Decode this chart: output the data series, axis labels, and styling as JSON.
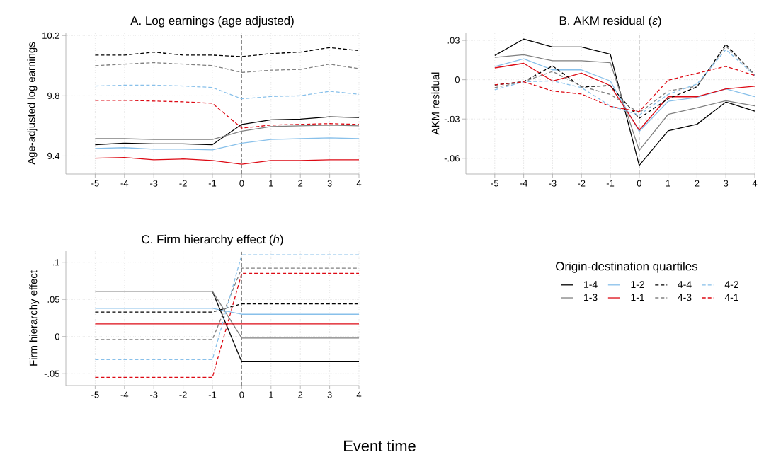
{
  "chart_data": [
    {
      "type": "line",
      "title": "A. Log earnings (age adjusted)",
      "ylabel": "Age-adjusted log earnings",
      "x": [
        -5,
        -4,
        -3,
        -2,
        -1,
        0,
        1,
        2,
        3,
        4
      ],
      "xlim": [
        -6,
        4
      ],
      "xticks": [
        -5,
        -4,
        -3,
        -2,
        -1,
        0,
        1,
        2,
        3,
        4
      ],
      "ylim": [
        9.28,
        10.22
      ],
      "yticks": [
        9.4,
        9.8,
        10.2
      ],
      "grid": true,
      "ref_lines": [
        {
          "axis": "x",
          "value": 0,
          "color": "#808080",
          "line_style": "dashed"
        }
      ],
      "series": [
        {
          "color": "#000000",
          "line_style": "solid",
          "values": [
            9.475,
            9.485,
            9.48,
            9.48,
            9.475,
            9.61,
            9.64,
            9.645,
            9.66,
            9.655
          ]
        },
        {
          "color": "#808080",
          "line_style": "solid",
          "values": [
            9.515,
            9.515,
            9.51,
            9.51,
            9.51,
            9.565,
            9.595,
            9.6,
            9.605,
            9.6
          ]
        },
        {
          "color": "#88c0ea",
          "line_style": "solid",
          "values": [
            9.45,
            9.455,
            9.445,
            9.445,
            9.44,
            9.485,
            9.51,
            9.515,
            9.52,
            9.515
          ]
        },
        {
          "color": "#dd0a14",
          "line_style": "solid",
          "values": [
            9.385,
            9.39,
            9.375,
            9.38,
            9.37,
            9.345,
            9.37,
            9.37,
            9.375,
            9.375
          ]
        },
        {
          "color": "#000000",
          "line_style": "dashed",
          "values": [
            10.07,
            10.07,
            10.09,
            10.07,
            10.07,
            10.06,
            10.08,
            10.09,
            10.12,
            10.1
          ]
        },
        {
          "color": "#808080",
          "line_style": "dashed",
          "values": [
            10.0,
            10.01,
            10.02,
            10.01,
            10.0,
            9.955,
            9.97,
            9.975,
            10.01,
            9.98
          ]
        },
        {
          "color": "#88c0ea",
          "line_style": "dashed",
          "values": [
            9.865,
            9.87,
            9.87,
            9.865,
            9.855,
            9.78,
            9.795,
            9.8,
            9.83,
            9.81
          ]
        },
        {
          "color": "#dd0a14",
          "line_style": "dashed",
          "values": [
            9.77,
            9.77,
            9.765,
            9.76,
            9.75,
            9.585,
            9.605,
            9.61,
            9.615,
            9.61
          ]
        }
      ]
    },
    {
      "type": "line",
      "title": "B. AKM residual (*ε*)",
      "ylabel": "AKM residual",
      "x": [
        -5,
        -4,
        -3,
        -2,
        -1,
        0,
        1,
        2,
        3,
        4
      ],
      "xlim": [
        -6,
        4
      ],
      "xticks": [
        -5,
        -4,
        -3,
        -2,
        -1,
        0,
        1,
        2,
        3,
        4
      ],
      "ylim": [
        -0.072,
        0.036
      ],
      "yticks": [
        {
          "value": -0.06,
          "label": "-.06"
        },
        {
          "value": -0.03,
          "label": "-.03"
        },
        0,
        {
          "value": 0.03,
          "label": ".03"
        }
      ],
      "grid": true,
      "ref_lines": [
        {
          "axis": "x",
          "value": 0,
          "color": "#808080",
          "line_style": "dashed"
        }
      ],
      "series": [
        {
          "color": "#000000",
          "line_style": "solid",
          "values": [
            0.0185,
            0.031,
            0.025,
            0.025,
            0.0195,
            -0.0655,
            -0.039,
            -0.034,
            -0.017,
            -0.024
          ]
        },
        {
          "color": "#808080",
          "line_style": "solid",
          "values": [
            0.017,
            0.019,
            0.0145,
            0.0145,
            0.013,
            -0.054,
            -0.0265,
            -0.0215,
            -0.016,
            -0.02
          ]
        },
        {
          "color": "#88c0ea",
          "line_style": "solid",
          "values": [
            0.01,
            0.016,
            0.0075,
            0.0075,
            -0.001,
            -0.0395,
            -0.0165,
            -0.0135,
            -0.007,
            -0.013
          ]
        },
        {
          "color": "#dd0a14",
          "line_style": "solid",
          "values": [
            0.009,
            0.0125,
            -0.001,
            0.005,
            -0.0045,
            -0.0385,
            -0.013,
            -0.013,
            -0.007,
            -0.005
          ]
        },
        {
          "color": "#000000",
          "line_style": "dashed",
          "values": [
            -0.004,
            -0.0015,
            0.0105,
            -0.0055,
            -0.0045,
            -0.0295,
            -0.0145,
            -0.0055,
            0.027,
            0.0035
          ]
        },
        {
          "color": "#808080",
          "line_style": "dashed",
          "values": [
            -0.006,
            -0.0015,
            0.0063,
            -0.005,
            -0.0112,
            -0.0253,
            -0.0086,
            -0.005,
            0.0256,
            0.0037
          ]
        },
        {
          "color": "#88c0ea",
          "line_style": "dashed",
          "values": [
            -0.0077,
            -0.0016,
            -0.0009,
            -0.006,
            -0.02,
            -0.027,
            -0.0112,
            -0.0033,
            0.023,
            0.0032
          ]
        },
        {
          "color": "#dd0a14",
          "line_style": "dashed",
          "values": [
            -0.0039,
            -0.0016,
            -0.0086,
            -0.0109,
            -0.0204,
            -0.0244,
            -0.0004,
            0.0049,
            0.0102,
            0.0032
          ]
        }
      ]
    },
    {
      "type": "line",
      "title": "C. Firm hierarchy effect (*h*)",
      "ylabel": "Firm hierarchy effect",
      "xlabel": "Event time",
      "x": [
        -5,
        -4,
        -3,
        -2,
        -1,
        0,
        1,
        2,
        3,
        4
      ],
      "xlim": [
        -6,
        4
      ],
      "xticks": [
        -5,
        -4,
        -3,
        -2,
        -1,
        0,
        1,
        2,
        3,
        4
      ],
      "ylim": [
        -0.066,
        0.115
      ],
      "yticks": [
        {
          "value": -0.05,
          "label": "-.05"
        },
        0,
        {
          "value": 0.05,
          "label": ".05"
        },
        {
          "value": 0.1,
          "label": ".1"
        }
      ],
      "grid": true,
      "legend": "right",
      "legend_title": "Origin-destination quartiles",
      "ref_lines": [
        {
          "axis": "x",
          "value": 0,
          "color": "#808080",
          "line_style": "dashed"
        }
      ],
      "series": [
        {
          "name": "1-4",
          "color": "#000000",
          "line_style": "solid",
          "values": [
            0.061,
            0.061,
            0.061,
            0.061,
            0.061,
            -0.034,
            -0.034,
            -0.034,
            -0.034,
            -0.034
          ]
        },
        {
          "name": "1-3",
          "color": "#808080",
          "line_style": "solid",
          "values": [
            null,
            null,
            null,
            null,
            0.061,
            -0.002,
            -0.002,
            -0.002,
            -0.002,
            -0.002
          ]
        },
        {
          "name": "1-2",
          "color": "#88c0ea",
          "line_style": "solid",
          "values": [
            0.038,
            0.038,
            0.038,
            0.038,
            0.038,
            0.03,
            0.03,
            0.03,
            0.03,
            0.03
          ]
        },
        {
          "name": "1-1",
          "color": "#dd0a14",
          "line_style": "solid",
          "values": [
            0.017,
            0.017,
            0.017,
            0.017,
            0.017,
            0.017,
            0.017,
            0.017,
            0.017,
            0.017
          ]
        },
        {
          "name": "4-4",
          "color": "#000000",
          "line_style": "dashed",
          "values": [
            0.033,
            0.033,
            0.033,
            0.033,
            0.033,
            0.044,
            0.044,
            0.044,
            0.044,
            0.044
          ]
        },
        {
          "name": "4-3",
          "color": "#808080",
          "line_style": "dashed",
          "values": [
            -0.004,
            -0.004,
            -0.004,
            -0.004,
            -0.004,
            0.092,
            0.092,
            0.092,
            0.092,
            0.092
          ]
        },
        {
          "name": "4-2",
          "color": "#88c0ea",
          "line_style": "dashed",
          "values": [
            -0.031,
            -0.031,
            -0.031,
            -0.031,
            -0.031,
            0.11,
            0.11,
            0.11,
            0.11,
            0.11
          ]
        },
        {
          "name": "4-1",
          "color": "#dd0a14",
          "line_style": "dashed",
          "values": [
            -0.055,
            -0.055,
            -0.055,
            -0.055,
            -0.055,
            0.085,
            0.085,
            0.085,
            0.085,
            0.085
          ]
        }
      ]
    }
  ]
}
